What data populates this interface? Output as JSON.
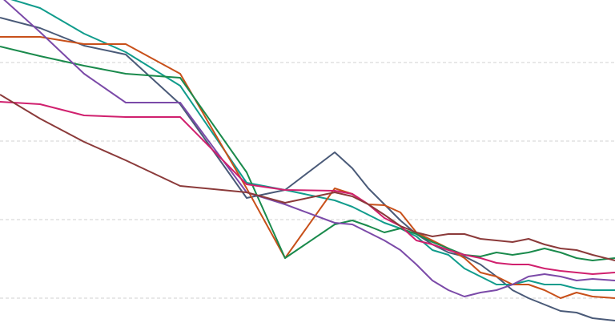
{
  "chart_data": {
    "type": "line",
    "x": [
      0,
      50,
      105,
      157,
      225,
      308,
      356,
      418,
      440,
      460,
      480,
      500,
      520,
      540,
      560,
      580,
      600,
      620,
      640,
      660,
      680,
      700,
      720,
      740,
      768
    ],
    "xlim": [
      0,
      768
    ],
    "ylim": [
      0,
      403
    ],
    "yticks": [
      31,
      129,
      227,
      325
    ],
    "grid": true,
    "series": [
      {
        "color": "#4a5a78",
        "values": [
          381,
          368,
          346,
          335,
          273,
          156,
          166,
          213,
          193,
          168,
          148,
          128,
          111,
          98,
          88,
          83,
          73,
          58,
          41,
          31,
          23,
          15,
          13,
          6,
          3
        ]
      },
      {
        "color": "#119c8c",
        "values": [
          408,
          393,
          361,
          338,
          296,
          175,
          166,
          153,
          145,
          135,
          125,
          118,
          108,
          91,
          85,
          68,
          58,
          48,
          48,
          53,
          48,
          48,
          43,
          41,
          41
        ]
      },
      {
        "color": "#c8501a",
        "values": [
          357,
          357,
          348,
          348,
          311,
          168,
          81,
          168,
          161,
          148,
          147,
          138,
          113,
          103,
          93,
          81,
          63,
          58,
          48,
          48,
          41,
          31,
          38,
          33,
          31
        ]
      },
      {
        "color": "#1a8a4c",
        "values": [
          345,
          333,
          321,
          311,
          306,
          188,
          81,
          123,
          128,
          121,
          113,
          118,
          111,
          101,
          93,
          85,
          83,
          88,
          85,
          88,
          93,
          88,
          81,
          78,
          81
        ]
      },
      {
        "color": "#7b4aa8",
        "values": [
          408,
          363,
          311,
          275,
          275,
          163,
          148,
          125,
          123,
          113,
          103,
          91,
          73,
          53,
          41,
          33,
          38,
          41,
          48,
          58,
          61,
          58,
          53,
          55,
          53
        ]
      },
      {
        "color": "#d0206e",
        "values": [
          276,
          273,
          259,
          257,
          257,
          173,
          166,
          165,
          161,
          148,
          131,
          121,
          103,
          98,
          91,
          85,
          81,
          75,
          73,
          73,
          68,
          65,
          63,
          61,
          63
        ]
      },
      {
        "color": "#8b3a3a",
        "values": [
          285,
          255,
          226,
          203,
          171,
          163,
          150,
          163,
          158,
          148,
          135,
          121,
          113,
          108,
          111,
          111,
          105,
          103,
          101,
          105,
          98,
          93,
          91,
          85,
          78
        ]
      }
    ]
  }
}
